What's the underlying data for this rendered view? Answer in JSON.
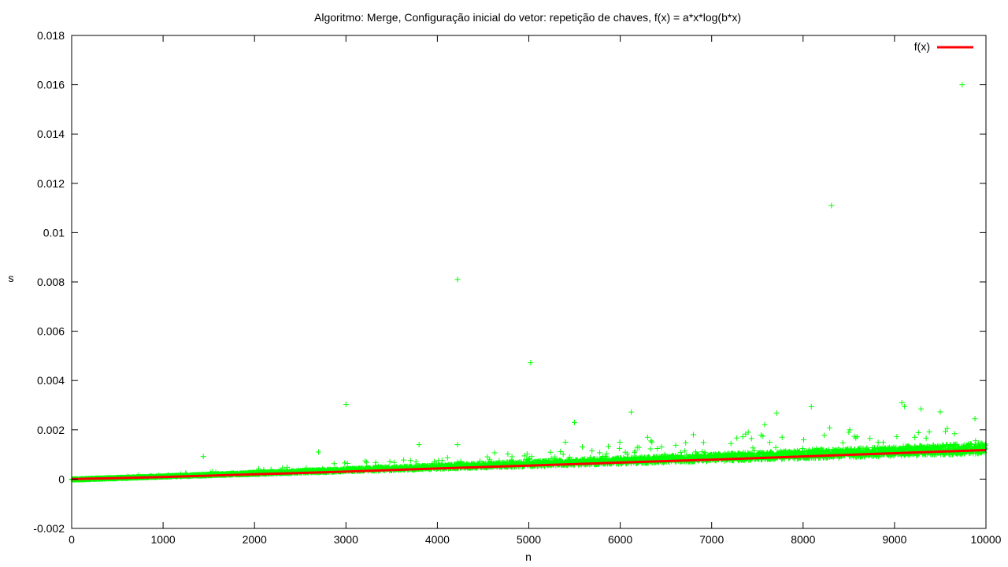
{
  "chart_data": {
    "type": "scatter",
    "title": "Algoritmo: Merge, Configuração inicial do vetor: repetição de chaves, f(x) = a*x*log(b*x)",
    "xlabel": "n",
    "ylabel": "s",
    "xlim": [
      0,
      10000
    ],
    "ylim": [
      -0.002,
      0.018
    ],
    "x_ticks": [
      "0",
      "1000",
      "2000",
      "3000",
      "4000",
      "5000",
      "6000",
      "7000",
      "8000",
      "9000",
      "10000"
    ],
    "y_ticks": [
      "-0.002",
      "0",
      "0.002",
      "0.004",
      "0.006",
      "0.008",
      "0.01",
      "0.012",
      "0.014",
      "0.016",
      "0.018"
    ],
    "grid": false,
    "legend_position": "top-right",
    "legend": [
      {
        "label": "f(x)",
        "color": "#ff0000"
      }
    ],
    "series": [
      {
        "kind": "points",
        "marker": "plus",
        "color": "#00ff00",
        "n_min": 1,
        "n_max": 10000,
        "step": 5,
        "trend_slope_per_1000": 0.000125,
        "spread_fraction": 0.35,
        "outliers": [
          {
            "x": 3000,
            "y": 0.00303
          },
          {
            "x": 4220,
            "y": 0.0081
          },
          {
            "x": 5020,
            "y": 0.00472
          },
          {
            "x": 5500,
            "y": 0.0023
          },
          {
            "x": 6120,
            "y": 0.00272
          },
          {
            "x": 7580,
            "y": 0.00221
          },
          {
            "x": 7710,
            "y": 0.00268
          },
          {
            "x": 8090,
            "y": 0.00294
          },
          {
            "x": 8310,
            "y": 0.0111
          },
          {
            "x": 9080,
            "y": 0.0031
          },
          {
            "x": 9110,
            "y": 0.00295
          },
          {
            "x": 9290,
            "y": 0.00285
          },
          {
            "x": 9500,
            "y": 0.00273
          },
          {
            "x": 9740,
            "y": 0.016
          },
          {
            "x": 9880,
            "y": 0.00245
          },
          {
            "x": 1440,
            "y": 0.00092
          },
          {
            "x": 2700,
            "y": 0.0011
          },
          {
            "x": 3800,
            "y": 0.0014
          },
          {
            "x": 4220,
            "y": 0.0014
          },
          {
            "x": 5400,
            "y": 0.0015
          },
          {
            "x": 6300,
            "y": 0.0017
          },
          {
            "x": 6800,
            "y": 0.0018
          },
          {
            "x": 7400,
            "y": 0.0019
          },
          {
            "x": 8500,
            "y": 0.0019
          }
        ]
      },
      {
        "name": "f(x)",
        "kind": "curve",
        "color": "#ff0000",
        "formula": "a*x*log(b*x)",
        "x": [
          1,
          1000,
          2000,
          3000,
          4000,
          5000,
          6000,
          7000,
          8000,
          9000,
          10000
        ],
        "y": [
          0.0,
          8.5e-05,
          0.000195,
          0.000305,
          0.00043,
          0.00055,
          0.00067,
          0.00079,
          0.00092,
          0.00105,
          0.00118
        ]
      }
    ]
  }
}
